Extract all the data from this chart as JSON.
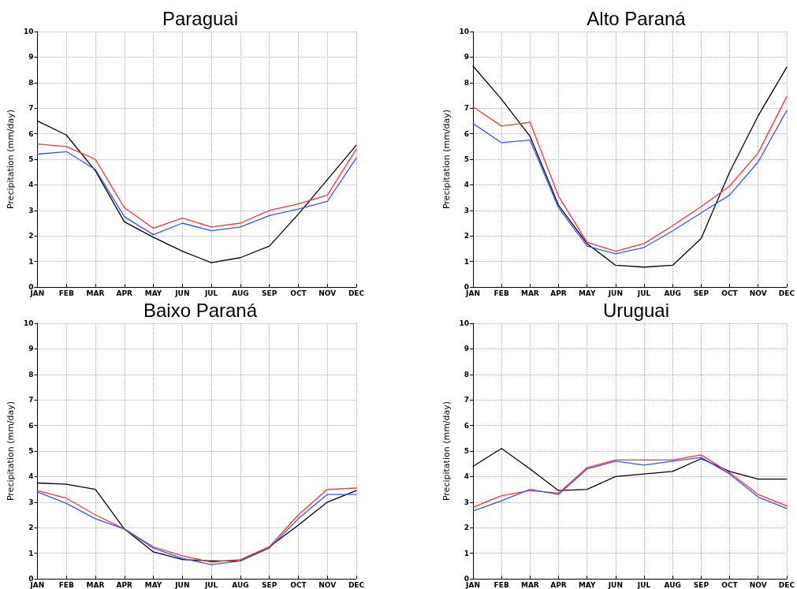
{
  "chart_data": [
    {
      "type": "line",
      "title": "Paraguai",
      "ylabel": "Precipitation (mm/day)",
      "categories": [
        "JAN",
        "FEB",
        "MAR",
        "APR",
        "MAY",
        "JUN",
        "JUL",
        "AUG",
        "SEP",
        "OCT",
        "NOV",
        "DEC"
      ],
      "ylim": [
        0,
        10
      ],
      "yticks": [
        0,
        1,
        2,
        3,
        4,
        5,
        6,
        7,
        8,
        9,
        10
      ],
      "grid": true,
      "line_style": "solid",
      "series": [
        {
          "color": "#000000",
          "values": [
            6.5,
            5.95,
            4.55,
            2.55,
            1.95,
            1.4,
            0.95,
            1.15,
            1.6,
            2.85,
            4.2,
            5.55
          ]
        },
        {
          "color": "#ff3333",
          "values": [
            5.6,
            5.5,
            5.0,
            3.1,
            2.3,
            2.7,
            2.35,
            2.5,
            3.0,
            3.25,
            3.6,
            5.4
          ]
        },
        {
          "color": "#3355ff",
          "values": [
            5.2,
            5.3,
            4.6,
            2.75,
            2.05,
            2.5,
            2.2,
            2.35,
            2.8,
            3.05,
            3.35,
            5.05
          ]
        }
      ]
    },
    {
      "type": "line",
      "title": "Alto Paraná",
      "ylabel": "Precipitation (mm/day)",
      "categories": [
        "JAN",
        "FEB",
        "MAR",
        "APR",
        "MAY",
        "JUN",
        "JUL",
        "AUG",
        "SEP",
        "OCT",
        "NOV",
        "DEC"
      ],
      "ylim": [
        0,
        10
      ],
      "yticks": [
        0,
        1,
        2,
        3,
        4,
        5,
        6,
        7,
        8,
        9,
        10
      ],
      "grid": true,
      "line_style": "solid",
      "series": [
        {
          "color": "#000000",
          "values": [
            8.65,
            7.35,
            5.9,
            3.2,
            1.7,
            0.85,
            0.78,
            0.85,
            1.9,
            4.5,
            6.7,
            8.6
          ]
        },
        {
          "color": "#ff3333",
          "values": [
            7.05,
            6.3,
            6.45,
            3.55,
            1.75,
            1.4,
            1.7,
            2.4,
            3.15,
            3.95,
            5.25,
            7.45
          ]
        },
        {
          "color": "#3355ff",
          "values": [
            6.4,
            5.65,
            5.75,
            3.1,
            1.6,
            1.3,
            1.55,
            2.2,
            2.9,
            3.6,
            4.9,
            6.9
          ]
        }
      ]
    },
    {
      "type": "line",
      "title": "Baixo Paraná",
      "ylabel": "Precipitation (mm/day)",
      "categories": [
        "JAN",
        "FEB",
        "MAR",
        "APR",
        "MAY",
        "JUN",
        "JUL",
        "AUG",
        "SEP",
        "OCT",
        "NOV",
        "DEC"
      ],
      "ylim": [
        0,
        10
      ],
      "yticks": [
        0,
        1,
        2,
        3,
        4,
        5,
        6,
        7,
        8,
        9,
        10
      ],
      "grid": true,
      "line_style": "solid",
      "series": [
        {
          "color": "#000000",
          "values": [
            3.75,
            3.7,
            3.5,
            1.95,
            1.05,
            0.75,
            0.7,
            0.7,
            1.25,
            2.1,
            3.0,
            3.45
          ]
        },
        {
          "color": "#ff3333",
          "values": [
            3.45,
            3.15,
            2.5,
            1.95,
            1.25,
            0.9,
            0.65,
            0.75,
            1.25,
            2.5,
            3.5,
            3.55
          ]
        },
        {
          "color": "#3355ff",
          "values": [
            3.4,
            2.95,
            2.35,
            1.95,
            1.2,
            0.8,
            0.55,
            0.7,
            1.2,
            2.35,
            3.3,
            3.3
          ]
        }
      ]
    },
    {
      "type": "line",
      "title": "Uruguai",
      "ylabel": "Precipitation (mm/day)",
      "categories": [
        "JAN",
        "FEB",
        "MAR",
        "APR",
        "MAY",
        "JUN",
        "JUL",
        "AUG",
        "SEP",
        "OCT",
        "NOV",
        "DEC"
      ],
      "ylim": [
        0,
        10
      ],
      "yticks": [
        0,
        1,
        2,
        3,
        4,
        5,
        6,
        7,
        8,
        9,
        10
      ],
      "grid": true,
      "line_style": "solid",
      "series": [
        {
          "color": "#000000",
          "values": [
            4.4,
            5.1,
            4.3,
            3.45,
            3.5,
            4.0,
            4.1,
            4.2,
            4.7,
            4.2,
            3.9,
            3.9
          ]
        },
        {
          "color": "#ff3333",
          "values": [
            2.8,
            3.25,
            3.45,
            3.35,
            4.35,
            4.65,
            4.65,
            4.65,
            4.85,
            4.15,
            3.3,
            2.85
          ]
        },
        {
          "color": "#3355ff",
          "values": [
            2.65,
            3.05,
            3.5,
            3.3,
            4.3,
            4.6,
            4.45,
            4.6,
            4.75,
            4.1,
            3.2,
            2.75
          ]
        }
      ]
    }
  ]
}
